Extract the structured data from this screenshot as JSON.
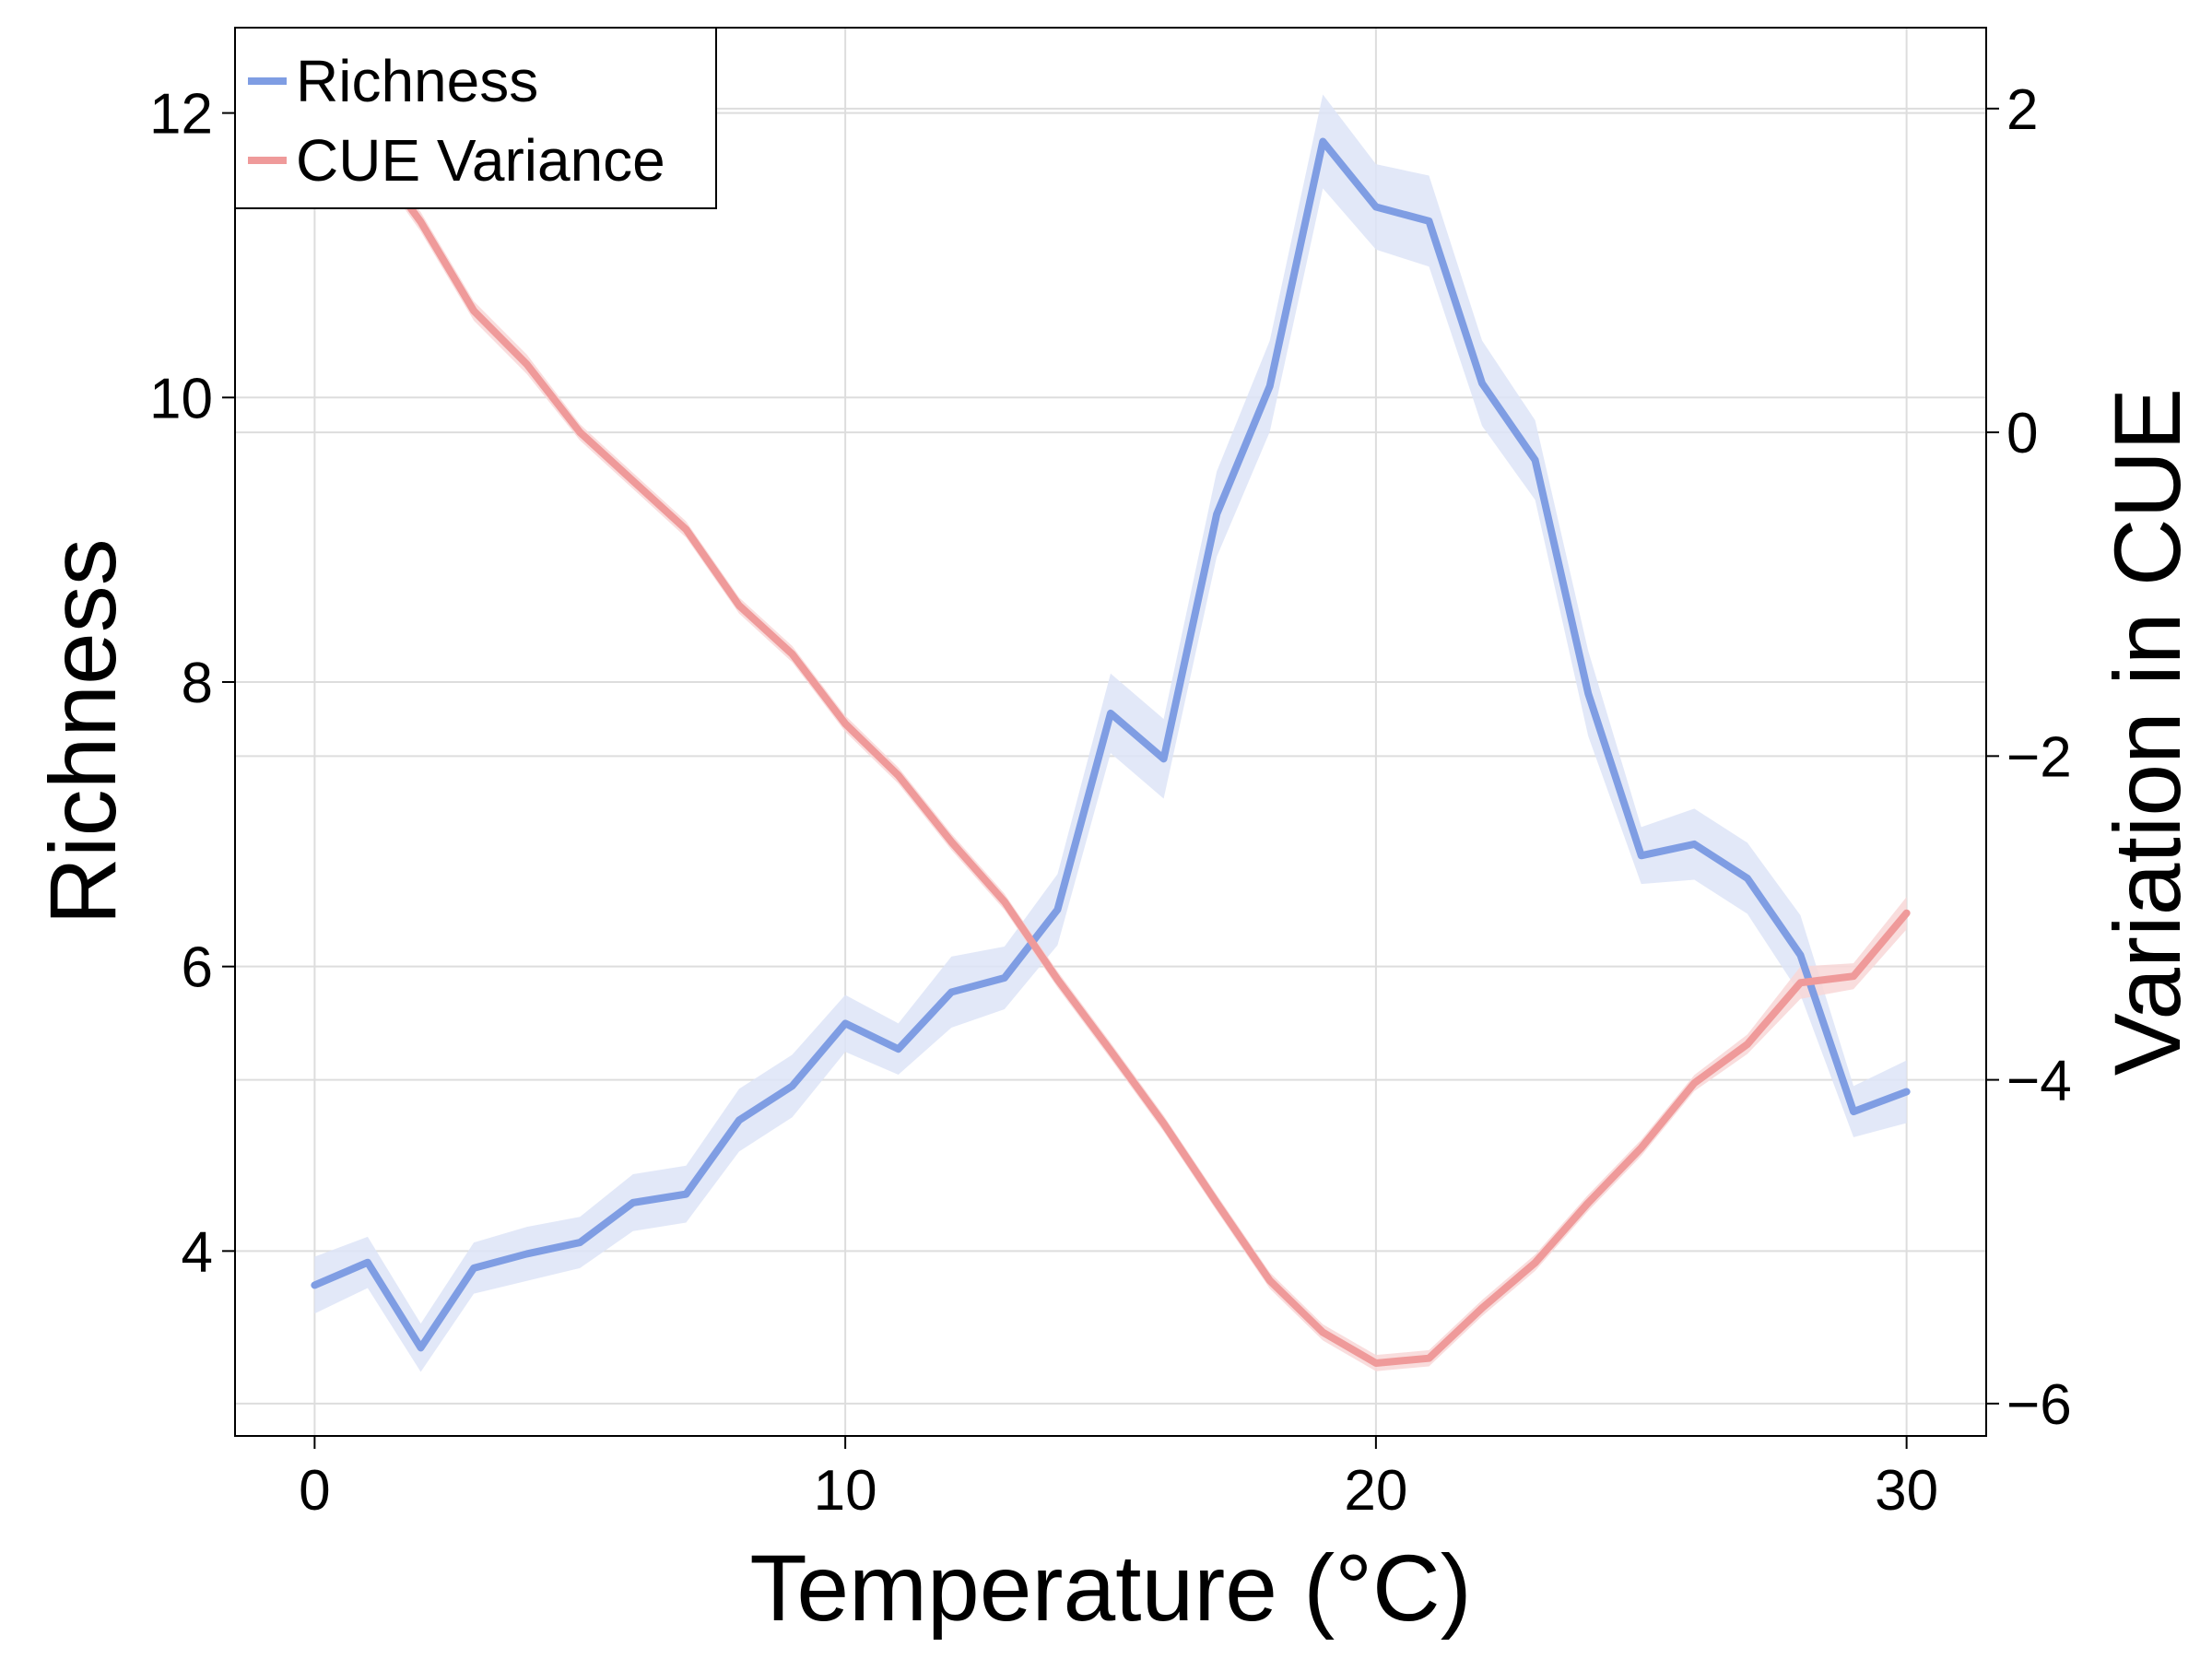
{
  "chart_data": {
    "type": "line",
    "xlabel": "Temperature (°C)",
    "ylabel_left": "Richness",
    "ylabel_right": "Variation in CUE",
    "xlim": [
      -1.5,
      31.5
    ],
    "ylim_left": [
      2.7,
      12.6
    ],
    "ylim_right": [
      -6.2,
      2.5
    ],
    "xticks": [
      0,
      10,
      20,
      30
    ],
    "yticks_left": [
      4,
      6,
      8,
      10,
      12
    ],
    "yticks_right": [
      -6,
      -4,
      -2,
      0,
      2
    ],
    "xtick_labels": [
      "0",
      "10",
      "20",
      "30"
    ],
    "ytick_labels_left": [
      "4",
      "6",
      "8",
      "10",
      "12"
    ],
    "ytick_labels_right": [
      "−6",
      "−4",
      "−2",
      "0",
      "2"
    ],
    "grid": true,
    "legend_position": "top-left",
    "x": [
      0,
      1,
      2,
      3,
      4,
      5,
      6,
      7,
      8,
      9,
      10,
      11,
      12,
      13,
      14,
      15,
      16,
      17,
      18,
      19,
      20,
      21,
      22,
      23,
      24,
      25,
      26,
      27,
      28,
      29,
      30
    ],
    "series": [
      {
        "name": "Richness",
        "axis": "left",
        "color": "#7f9de3",
        "band_color": "#dde4f7",
        "values": [
          3.76,
          3.92,
          3.32,
          3.88,
          3.98,
          4.06,
          4.34,
          4.4,
          4.92,
          5.16,
          5.6,
          5.42,
          5.82,
          5.92,
          6.4,
          7.78,
          7.46,
          9.18,
          10.08,
          11.8,
          11.34,
          11.24,
          10.1,
          9.56,
          7.92,
          6.78,
          6.86,
          6.62,
          6.08,
          4.98,
          5.12
        ],
        "band_halfwidth": [
          0.2,
          0.18,
          0.17,
          0.18,
          0.19,
          0.18,
          0.2,
          0.2,
          0.22,
          0.22,
          0.2,
          0.18,
          0.25,
          0.22,
          0.25,
          0.28,
          0.28,
          0.3,
          0.32,
          0.33,
          0.3,
          0.32,
          0.3,
          0.28,
          0.3,
          0.2,
          0.25,
          0.25,
          0.28,
          0.18,
          0.22
        ]
      },
      {
        "name": "CUE Variance",
        "axis": "right",
        "color": "#ef9a9a",
        "band_color": "#f8d7d7",
        "values": [
          2.0,
          1.75,
          1.3,
          0.75,
          0.42,
          0.0,
          -0.3,
          -0.6,
          -1.07,
          -1.37,
          -1.8,
          -2.12,
          -2.53,
          -2.9,
          -3.38,
          -3.82,
          -4.27,
          -4.76,
          -5.24,
          -5.56,
          -5.75,
          -5.72,
          -5.41,
          -5.13,
          -4.76,
          -4.42,
          -4.02,
          -3.78,
          -3.4,
          -3.36,
          -2.97
        ],
        "band_halfwidth": [
          0.05,
          0.05,
          0.06,
          0.06,
          0.06,
          0.05,
          0.05,
          0.05,
          0.05,
          0.05,
          0.05,
          0.05,
          0.05,
          0.05,
          0.05,
          0.05,
          0.05,
          0.05,
          0.05,
          0.05,
          0.05,
          0.05,
          0.05,
          0.05,
          0.05,
          0.05,
          0.05,
          0.06,
          0.1,
          0.08,
          0.1
        ]
      }
    ]
  }
}
